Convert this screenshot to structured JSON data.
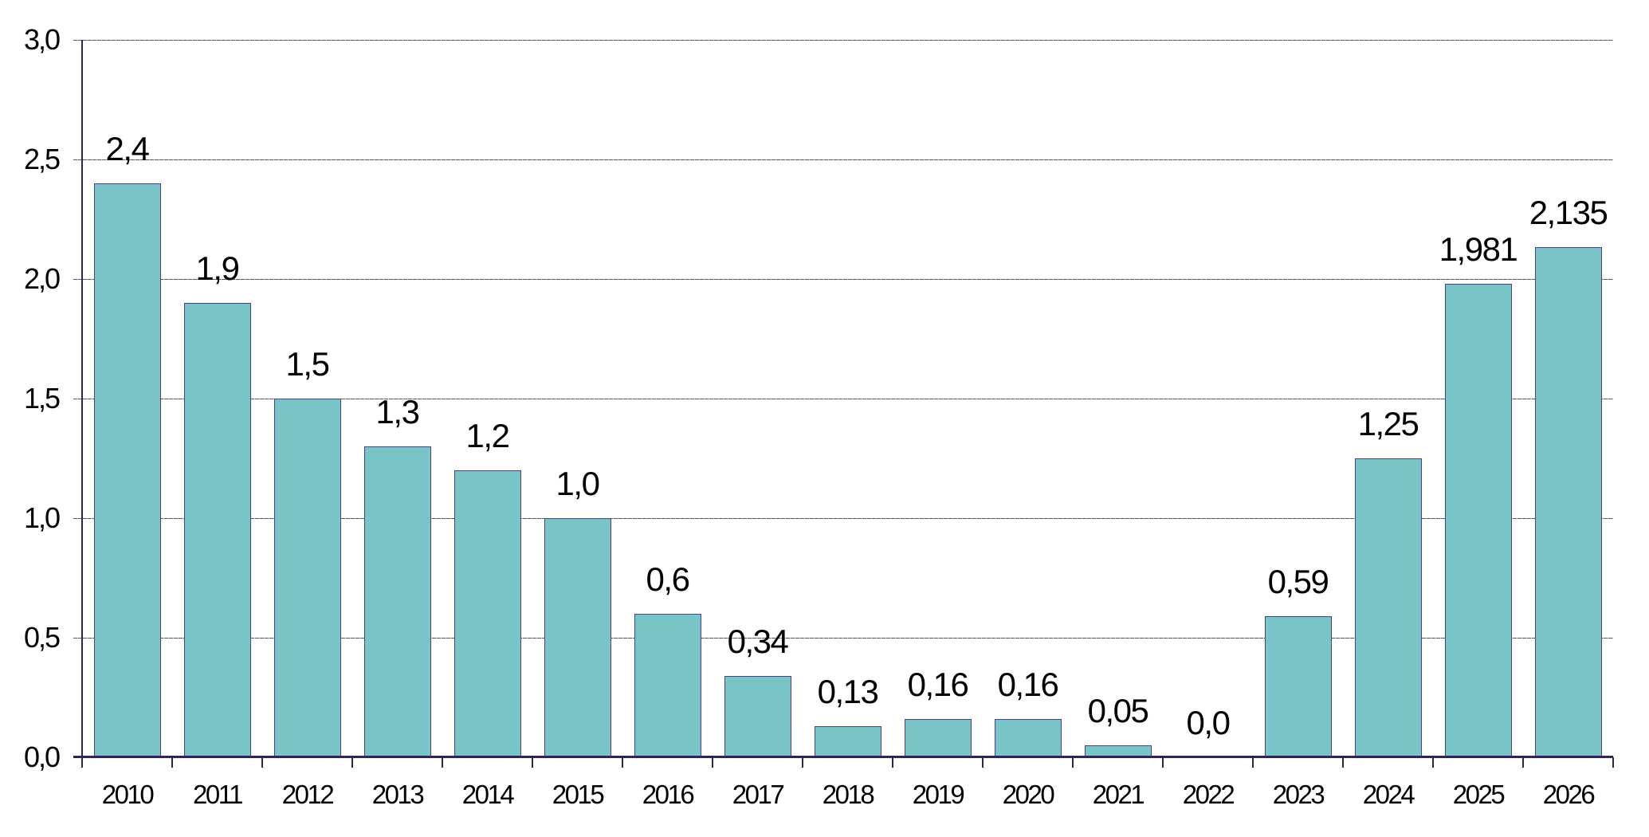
{
  "chart_data": {
    "type": "bar",
    "title": "",
    "xlabel": "",
    "ylabel": "",
    "categories": [
      "2010",
      "2011",
      "2012",
      "2013",
      "2014",
      "2015",
      "2016",
      "2017",
      "2018",
      "2019",
      "2020",
      "2021",
      "2022",
      "2023",
      "2024",
      "2025",
      "2026"
    ],
    "values": [
      2.4,
      1.9,
      1.5,
      1.3,
      1.2,
      1.0,
      0.6,
      0.34,
      0.13,
      0.16,
      0.16,
      0.05,
      0.0,
      0.59,
      1.25,
      1.981,
      2.135
    ],
    "data_labels": [
      "2,4",
      "1,9",
      "1,5",
      "1,3",
      "1,2",
      "1,0",
      "0,6",
      "0,34",
      "0,13",
      "0,16",
      "0,16",
      "0,05",
      "0,0",
      "0,59",
      "1,25",
      "1,981",
      "2,135"
    ],
    "data_label_position": "outside-end",
    "ylim": [
      0,
      3.0
    ],
    "y_tick_step": 0.5,
    "y_tick_labels": [
      "0,0",
      "0,5",
      "1,0",
      "1,5",
      "2,0",
      "2,5",
      "3,0"
    ],
    "decimal_separator": ",",
    "grid": "horizontal",
    "legend": "none"
  },
  "colors": {
    "bar_fill": "#78C4C6",
    "bar_border": "#4A4289",
    "axis": "#2E2459",
    "gridline": "#595959",
    "label_text": "#000000",
    "background": "#FFFFFF"
  }
}
